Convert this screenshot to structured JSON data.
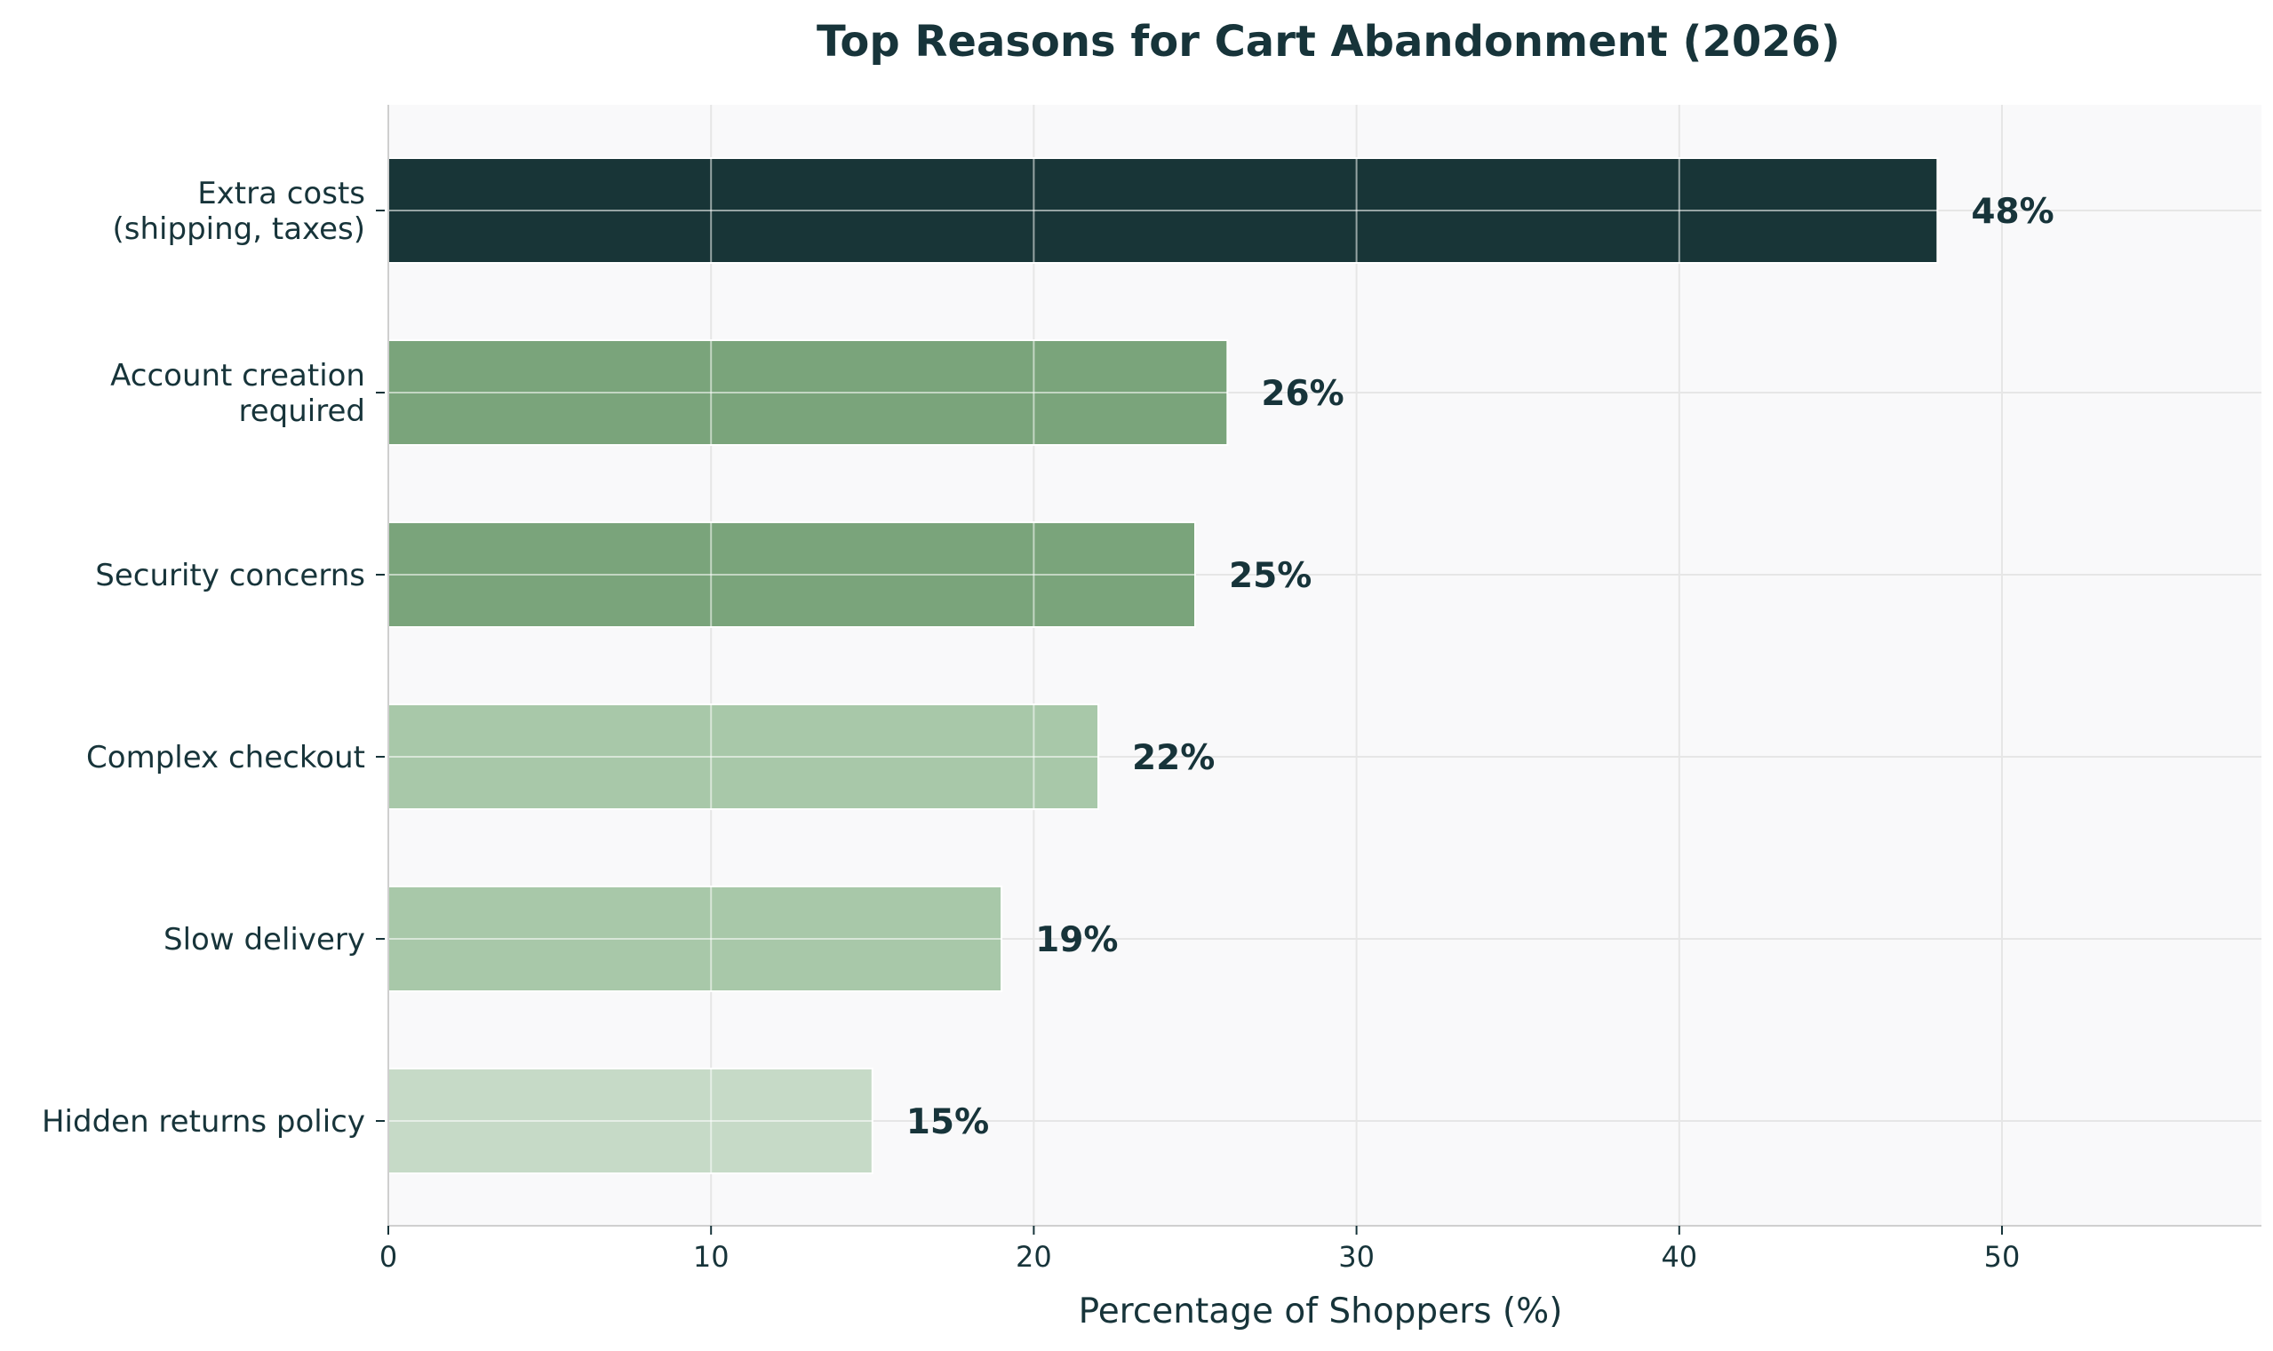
{
  "chart_data": {
    "type": "bar",
    "orientation": "horizontal",
    "title": "Top Reasons for Cart Abandonment (2026)",
    "xlabel": "Percentage of Shoppers (%)",
    "ylabel": "",
    "categories": [
      [
        "Extra costs",
        "(shipping, taxes)"
      ],
      [
        "Account creation",
        "required"
      ],
      [
        "Security concerns"
      ],
      [
        "Complex checkout"
      ],
      [
        "Slow delivery"
      ],
      [
        "Hidden returns policy"
      ]
    ],
    "values": [
      48,
      26,
      25,
      22,
      19,
      15
    ],
    "data_labels": [
      "48%",
      "26%",
      "25%",
      "22%",
      "19%",
      "15%"
    ],
    "bar_colors": [
      "#183537",
      "#7aa47b",
      "#7aa47b",
      "#a8c8a9",
      "#a8c8a9",
      "#c6dac7"
    ],
    "xlim": [
      0,
      58
    ],
    "xticks": [
      0,
      10,
      20,
      30,
      40,
      50
    ],
    "xtick_labels": [
      "0",
      "10",
      "20",
      "30",
      "40",
      "50"
    ],
    "grid": true,
    "legend": "none",
    "colors": {
      "text": "#17343a",
      "plot_background": "#f9f9fa",
      "grid": "#e6e6e6",
      "axis": "#cfcfcf"
    }
  }
}
